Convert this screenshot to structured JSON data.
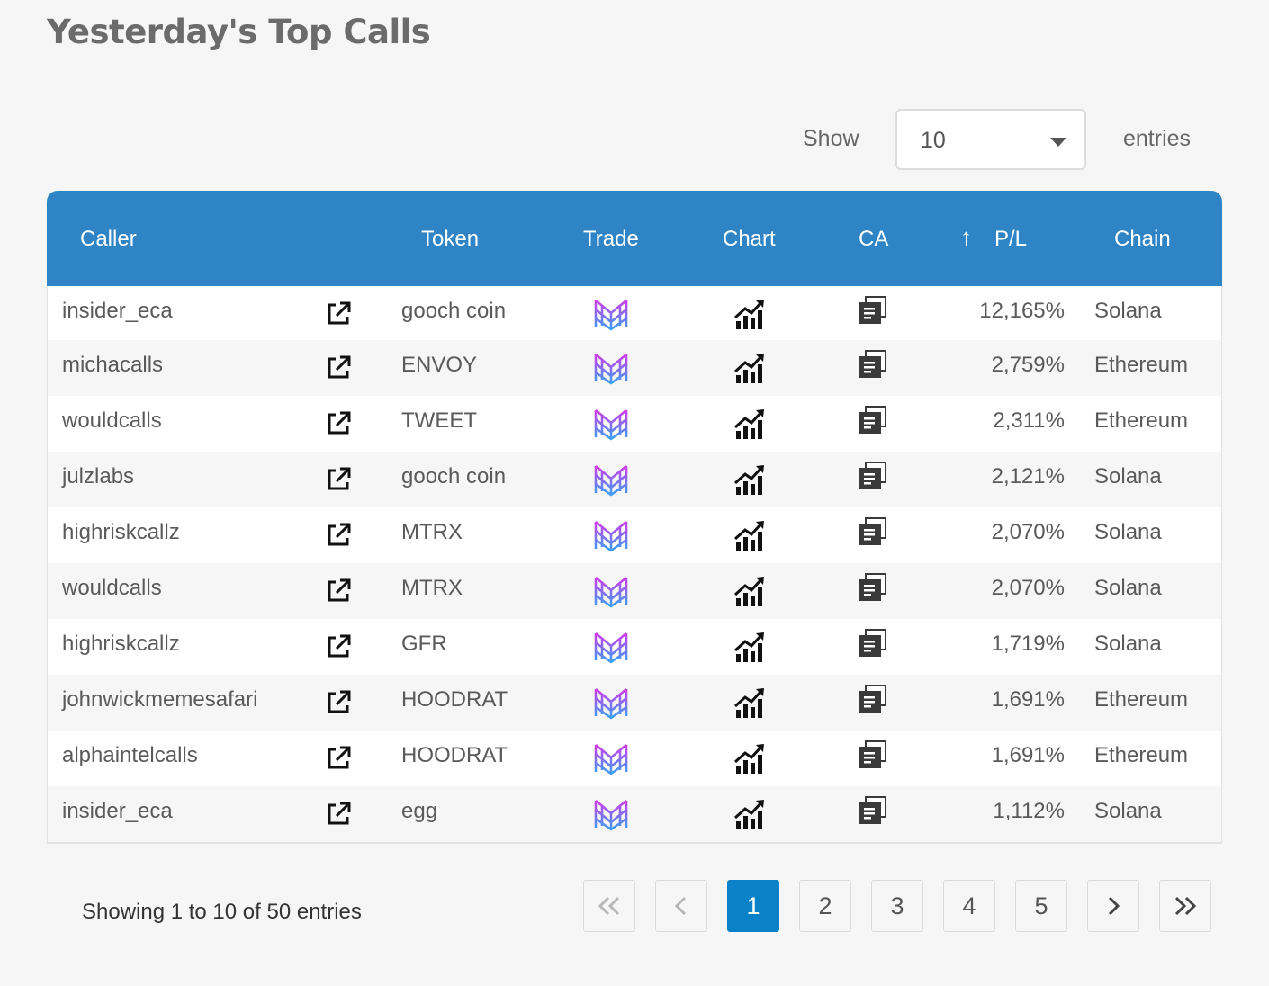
{
  "page_title": "Yesterday's Top Calls",
  "length_menu": {
    "show_label": "Show",
    "selected": "10",
    "entries_label": "entries"
  },
  "table": {
    "columns": [
      "Caller",
      "Token",
      "Trade",
      "Chart",
      "CA",
      "P/L",
      "Chain"
    ],
    "sort_indicator": "↑",
    "sorted_column": "P/L",
    "rows": [
      {
        "caller": "insider_eca",
        "token": "gooch coin",
        "pl": "12,165%",
        "chain": "Solana"
      },
      {
        "caller": "michacalls",
        "token": "ENVOY",
        "pl": "2,759%",
        "chain": "Ethereum"
      },
      {
        "caller": "wouldcalls",
        "token": "TWEET",
        "pl": "2,311%",
        "chain": "Ethereum"
      },
      {
        "caller": "julzlabs",
        "token": "gooch coin",
        "pl": "2,121%",
        "chain": "Solana"
      },
      {
        "caller": "highriskcallz",
        "token": "MTRX",
        "pl": "2,070%",
        "chain": "Solana"
      },
      {
        "caller": "wouldcalls",
        "token": "MTRX",
        "pl": "2,070%",
        "chain": "Solana"
      },
      {
        "caller": "highriskcallz",
        "token": "GFR",
        "pl": "1,719%",
        "chain": "Solana"
      },
      {
        "caller": "johnwickmemesafari",
        "token": "HOODRAT",
        "pl": "1,691%",
        "chain": "Ethereum"
      },
      {
        "caller": "alphaintelcalls",
        "token": "HOODRAT",
        "pl": "1,691%",
        "chain": "Ethereum"
      },
      {
        "caller": "insider_eca",
        "token": "egg",
        "pl": "1,112%",
        "chain": "Solana"
      }
    ]
  },
  "info_text": "Showing 1 to 10 of 50 entries",
  "pagination": {
    "pages": [
      "1",
      "2",
      "3",
      "4",
      "5"
    ],
    "current": "1",
    "first_disabled": true,
    "prev_disabled": true
  },
  "icons": {
    "caller_link": "external-link-icon",
    "trade": "trade-bot-logo-icon",
    "chart": "chart-up-icon",
    "ca": "copy-icon"
  },
  "colors": {
    "header_bg": "#2e84c4",
    "active_page": "#0b82c8",
    "trade_gradient_start": "#d03ce8",
    "trade_gradient_end": "#3aa0f5"
  }
}
